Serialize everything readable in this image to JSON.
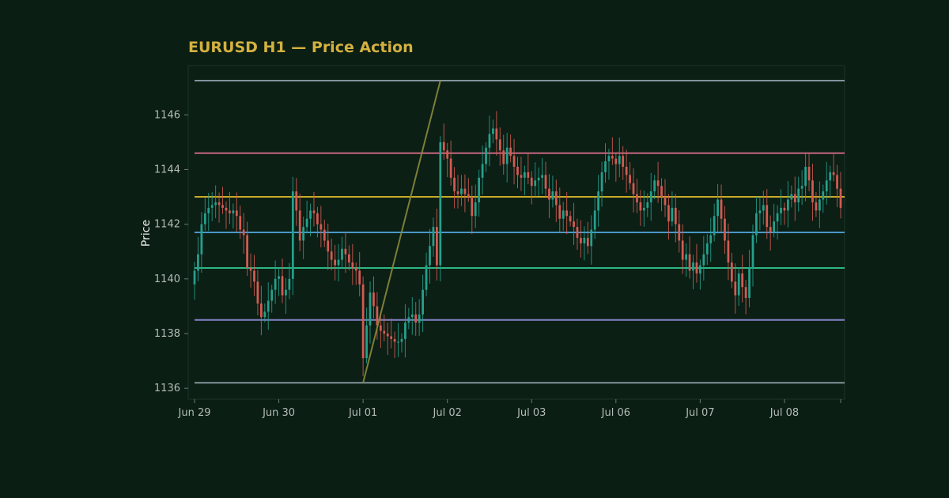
{
  "chart_data": {
    "type": "candlestick",
    "title": "EURUSD H1 — Price Action",
    "xlabel": "",
    "ylabel": "Price",
    "ylim": [
      1135.6,
      1147.8
    ],
    "yticks": [
      1136,
      1138,
      1140,
      1142,
      1144,
      1146
    ],
    "xticks": [
      "Jun 29",
      "Jun 30",
      "Jul 01",
      "Jul 02",
      "Jul 03",
      "Jul 06",
      "Jul 07",
      "Jul 08"
    ],
    "bars_per_day": 24,
    "grid": false,
    "legend": "none",
    "colors": {
      "background": "#0a1e14",
      "plot_background": "#0b1f15",
      "title": "#d4b13f",
      "axis_text": "#b5bcb6",
      "up": "#26a08c",
      "down": "#d45b53"
    },
    "levels": [
      {
        "value": 1147.25,
        "color": "#8a9aa4"
      },
      {
        "value": 1144.6,
        "color": "#d06a86"
      },
      {
        "value": 1143.0,
        "color": "#d4b22a"
      },
      {
        "value": 1141.7,
        "color": "#4f9fd4"
      },
      {
        "value": 1140.4,
        "color": "#2fbf8a"
      },
      {
        "value": 1138.5,
        "color": "#8a8ad0"
      },
      {
        "value": 1136.2,
        "color": "#8a9aa4"
      }
    ],
    "trendline": {
      "from": [
        48,
        1136.2
      ],
      "to": [
        70,
        1147.25
      ],
      "color": "#8a8a3a"
    },
    "close": [
      1140.3,
      1140.9,
      1142.0,
      1142.4,
      1142.6,
      1142.7,
      1142.8,
      1142.7,
      1142.6,
      1142.5,
      1142.4,
      1142.5,
      1142.3,
      1141.8,
      1141.6,
      1140.4,
      1140.3,
      1139.9,
      1139.1,
      1138.6,
      1138.8,
      1139.2,
      1139.6,
      1140.0,
      1140.1,
      1139.4,
      1139.6,
      1140.0,
      1143.2,
      1142.5,
      1141.4,
      1141.9,
      1142.2,
      1142.5,
      1142.4,
      1142.0,
      1141.8,
      1141.4,
      1141.0,
      1140.7,
      1140.5,
      1140.7,
      1141.1,
      1140.9,
      1140.6,
      1140.4,
      1140.3,
      1139.8,
      1137.1,
      1138.3,
      1139.5,
      1139.0,
      1138.3,
      1138.1,
      1138.0,
      1137.9,
      1137.8,
      1137.7,
      1137.7,
      1137.8,
      1138.4,
      1138.6,
      1138.7,
      1138.4,
      1138.7,
      1139.6,
      1140.5,
      1141.2,
      1141.9,
      1140.5,
      1145.0,
      1144.7,
      1144.4,
      1143.7,
      1143.2,
      1143.1,
      1143.3,
      1143.1,
      1143.0,
      1142.3,
      1142.8,
      1143.7,
      1144.2,
      1144.8,
      1145.3,
      1145.5,
      1145.1,
      1144.7,
      1144.2,
      1144.8,
      1144.5,
      1144.1,
      1143.8,
      1143.7,
      1143.9,
      1143.7,
      1143.4,
      1143.6,
      1143.7,
      1143.8,
      1143.3,
      1142.9,
      1143.2,
      1142.7,
      1142.2,
      1142.5,
      1142.3,
      1142.1,
      1141.9,
      1141.5,
      1141.3,
      1141.5,
      1141.2,
      1141.8,
      1142.5,
      1143.2,
      1143.9,
      1144.3,
      1144.5,
      1144.4,
      1144.2,
      1144.5,
      1144.1,
      1143.8,
      1143.5,
      1143.1,
      1142.8,
      1142.5,
      1142.6,
      1142.8,
      1143.2,
      1143.6,
      1143.4,
      1143.0,
      1142.7,
      1142.1,
      1142.6,
      1142.0,
      1141.4,
      1140.7,
      1140.9,
      1140.3,
      1140.6,
      1140.2,
      1140.5,
      1140.9,
      1141.3,
      1141.6,
      1142.3,
      1142.9,
      1142.2,
      1141.4,
      1140.6,
      1139.9,
      1139.4,
      1140.2,
      1139.7,
      1139.3,
      1140.4,
      1141.6,
      1142.4,
      1142.5,
      1142.7,
      1141.9,
      1141.7,
      1142.1,
      1142.4,
      1142.6,
      1142.5,
      1142.9,
      1143.1,
      1142.8,
      1143.3,
      1143.4,
      1144.1,
      1143.6,
      1142.8,
      1142.5,
      1142.9,
      1143.2,
      1143.6,
      1143.9,
      1143.8,
      1143.3,
      1142.6
    ]
  }
}
